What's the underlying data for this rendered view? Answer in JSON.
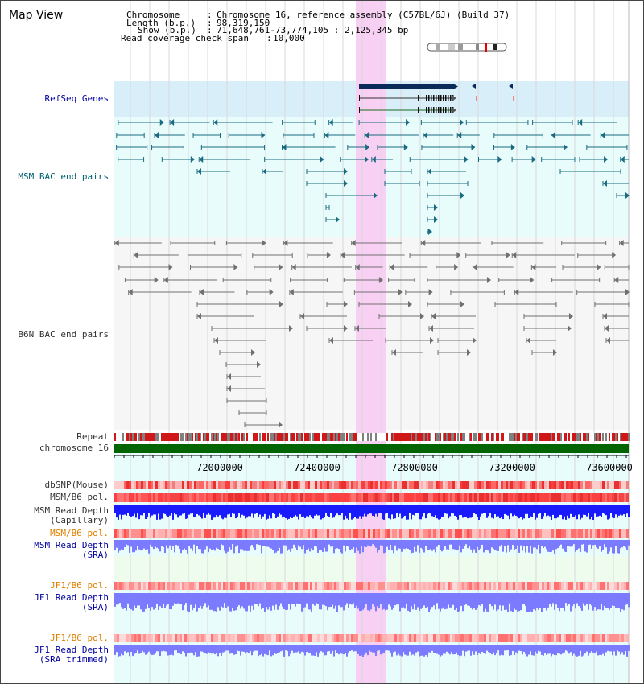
{
  "header": {
    "title": "Map View",
    "chromosome_label": "Chromosome",
    "chromosome_value": "Chromosome 16, reference assembly (C57BL/6J) (Build 37)",
    "length_label": "Length (b.p.)",
    "length_value": "98,319,150",
    "show_label": "Show (b.p.)",
    "show_value": "71,648,761-73,774,105 : 2,125,345 bp",
    "span_label": "Read coverage check span",
    "span_value": "10,000"
  },
  "tracks": {
    "refseq": "RefSeq Genes",
    "msm_bac": "MSM BAC end pairs",
    "b6n_bac": "B6N BAC end pairs",
    "repeat": "Repeat",
    "chromosome": "chromosome 16",
    "dbsnp": "dbSNP(Mouse)",
    "msm_b6_pol": "MSM/B6 pol.",
    "msm_depth_cap_1": "MSM Read Depth",
    "msm_depth_cap_2": "(Capillary)",
    "msm_b6_pol_2": "MSM/B6 pol.",
    "msm_depth_sra_1": "MSM Read Depth",
    "msm_depth_sra_2": "(SRA)",
    "jf1_b6_pol": "JF1/B6 pol.",
    "jf1_depth_sra_1": "JF1 Read Depth",
    "jf1_depth_sra_2": "(SRA)",
    "jf1_b6_pol_2": "JF1/B6 pol.",
    "jf1_depth_trim_1": "JF1 Read Depth",
    "jf1_depth_trim_2": "(SRA trimmed)"
  },
  "axis": {
    "ticks": [
      "72000000",
      "72400000",
      "72800000",
      "73200000",
      "73600000"
    ]
  },
  "colors": {
    "highlight": "#f8d0f4",
    "refseq_bg": "#d8effa",
    "msm_bg": "#e8fcfc",
    "gene": "#0a2a5a",
    "msm_feature": "#1a6a80",
    "b6n_feature": "#707070",
    "chromosome_bar": "#006400",
    "depth_blue": "#1a1aff",
    "depth_light": "#7b7bff"
  }
}
